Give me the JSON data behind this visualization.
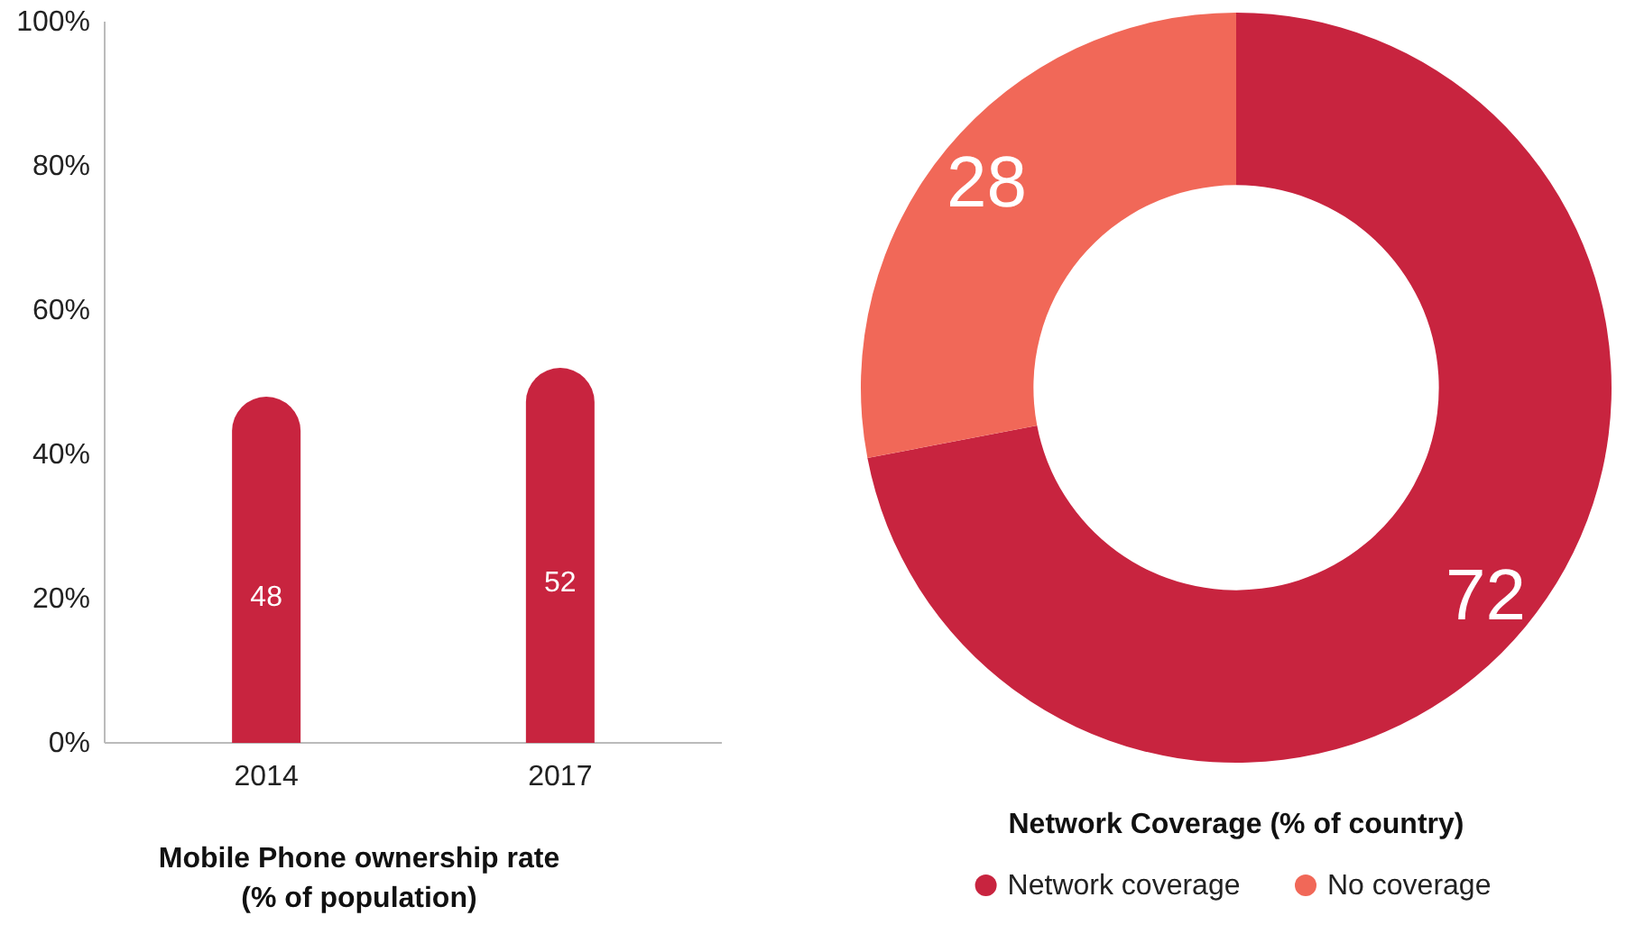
{
  "chart_data": [
    {
      "type": "bar",
      "title": "Mobile Phone ownership rate\n(% of population)",
      "categories": [
        "2014",
        "2017"
      ],
      "values": [
        48,
        52
      ],
      "color": "#c8243f",
      "ylim": [
        0,
        100
      ],
      "yticks": [
        {
          "value": 0,
          "label": "0%"
        },
        {
          "value": 20,
          "label": "20%"
        },
        {
          "value": 40,
          "label": "40%"
        },
        {
          "value": 60,
          "label": "60%"
        },
        {
          "value": 80,
          "label": "80%"
        },
        {
          "value": 100,
          "label": "100%"
        }
      ],
      "data_labels": true,
      "grid": false
    },
    {
      "type": "donut",
      "title": "Network Coverage (% of country)",
      "categories": [
        "Network coverage",
        "No coverage"
      ],
      "values": [
        72,
        28
      ],
      "colors": [
        "#c8243f",
        "#f16858"
      ],
      "data_labels": true,
      "legend": "bottom"
    }
  ]
}
